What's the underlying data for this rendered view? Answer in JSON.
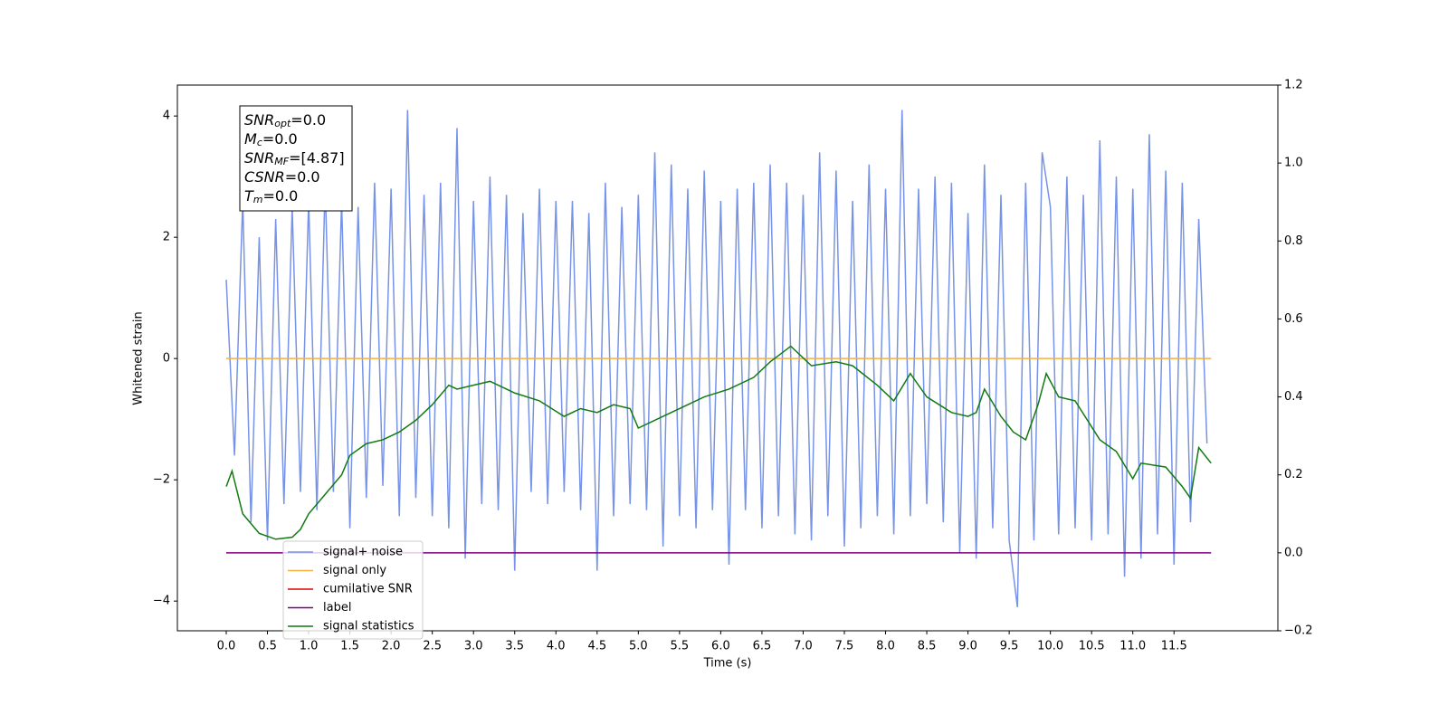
{
  "chart_data": {
    "type": "line",
    "xlabel": "Time (s)",
    "ylabel": "Whitened strain",
    "xlim": [
      -0.593,
      12.76
    ],
    "ylim": [
      -4.49,
      4.51
    ],
    "y2lim": [
      -0.2,
      1.2
    ],
    "xticks": [
      {
        "value": 0,
        "label": "0.0"
      },
      {
        "value": 0.5,
        "label": "0.5"
      },
      {
        "value": 1,
        "label": "1.0"
      },
      {
        "value": 1.5,
        "label": "1.5"
      },
      {
        "value": 2,
        "label": "2.0"
      },
      {
        "value": 2.5,
        "label": "2.5"
      },
      {
        "value": 3,
        "label": "3.0"
      },
      {
        "value": 3.5,
        "label": "3.5"
      },
      {
        "value": 4,
        "label": "4.0"
      },
      {
        "value": 4.5,
        "label": "4.5"
      },
      {
        "value": 5,
        "label": "5.0"
      },
      {
        "value": 5.5,
        "label": "5.5"
      },
      {
        "value": 6,
        "label": "6.0"
      },
      {
        "value": 6.5,
        "label": "6.5"
      },
      {
        "value": 7,
        "label": "7.0"
      },
      {
        "value": 7.5,
        "label": "7.5"
      },
      {
        "value": 8,
        "label": "8.0"
      },
      {
        "value": 8.5,
        "label": "8.5"
      },
      {
        "value": 9,
        "label": "9.0"
      },
      {
        "value": 9.5,
        "label": "9.5"
      },
      {
        "value": 10,
        "label": "10.0"
      },
      {
        "value": 10.5,
        "label": "10.5"
      },
      {
        "value": 11,
        "label": "11.0"
      },
      {
        "value": 11.5,
        "label": "11.5"
      }
    ],
    "yticks": [
      {
        "value": -4,
        "label": "−4"
      },
      {
        "value": -2,
        "label": "−2"
      },
      0,
      2,
      4
    ],
    "y2ticks": [
      {
        "value": -0.2,
        "label": "−0.2"
      },
      {
        "value": 0,
        "label": "0.0"
      },
      0.2,
      0.4,
      0.6,
      0.8,
      {
        "value": 1,
        "label": "1.0"
      },
      1.2
    ],
    "annotations": [
      {
        "text": "SNR",
        "sub": "opt",
        "value": "=0.0"
      },
      {
        "text": "M",
        "sub": "c",
        "value": "=0.0"
      },
      {
        "text": "SNR",
        "sub": "MF",
        "value": "=[4.87]"
      },
      {
        "text": "CSNR",
        "value": "=0.0"
      },
      {
        "text": "T",
        "sub": "m",
        "value": "=0.0"
      }
    ],
    "series": [
      {
        "name": "signal+ noise",
        "color": "#7793e8",
        "x": [
          0,
          0.1,
          0.2,
          0.3,
          0.4,
          0.5,
          0.6,
          0.7,
          0.8,
          0.9,
          1,
          1.1,
          1.2,
          1.3,
          1.4,
          1.5,
          1.6,
          1.7,
          1.8,
          1.9,
          2,
          2.1,
          2.2,
          2.3,
          2.4,
          2.5,
          2.6,
          2.7,
          2.8,
          2.9,
          3,
          3.1,
          3.2,
          3.3,
          3.4,
          3.5,
          3.6,
          3.7,
          3.8,
          3.9,
          4,
          4.1,
          4.2,
          4.3,
          4.4,
          4.5,
          4.6,
          4.7,
          4.8,
          4.9,
          5,
          5.1,
          5.2,
          5.3,
          5.4,
          5.5,
          5.6,
          5.7,
          5.8,
          5.9,
          6,
          6.1,
          6.2,
          6.3,
          6.4,
          6.5,
          6.6,
          6.7,
          6.8,
          6.9,
          7,
          7.1,
          7.2,
          7.3,
          7.4,
          7.5,
          7.6,
          7.7,
          7.8,
          7.9,
          8,
          8.1,
          8.2,
          8.3,
          8.4,
          8.5,
          8.6,
          8.7,
          8.8,
          8.9,
          9,
          9.1,
          9.2,
          9.3,
          9.4,
          9.5,
          9.6,
          9.7,
          9.8,
          9.9,
          10,
          10.1,
          10.2,
          10.3,
          10.4,
          10.5,
          10.6,
          10.7,
          10.8,
          10.9,
          11,
          11.1,
          11.2,
          11.3,
          11.4,
          11.5,
          11.6,
          11.7,
          11.8,
          11.9
        ],
        "values": [
          1.3,
          -1.6,
          2.6,
          -2.7,
          2.0,
          -3.0,
          2.3,
          -2.4,
          2.5,
          -2.2,
          2.6,
          -2.5,
          2.9,
          -2.2,
          2.6,
          -2.8,
          2.5,
          -2.3,
          2.9,
          -2.1,
          2.8,
          -2.6,
          4.1,
          -2.3,
          2.7,
          -2.6,
          2.9,
          -2.8,
          3.8,
          -3.3,
          2.6,
          -2.4,
          3.0,
          -2.5,
          2.7,
          -3.5,
          2.4,
          -2.2,
          2.8,
          -2.4,
          2.6,
          -2.2,
          2.6,
          -2.5,
          2.4,
          -3.5,
          2.9,
          -2.6,
          2.5,
          -2.4,
          2.7,
          -2.5,
          3.4,
          -3.1,
          3.2,
          -2.6,
          2.8,
          -2.8,
          3.1,
          -2.5,
          2.6,
          -3.4,
          2.8,
          -2.5,
          2.9,
          -2.8,
          3.2,
          -2.6,
          2.9,
          -2.9,
          2.7,
          -3.0,
          3.4,
          -2.6,
          3.1,
          -3.1,
          2.6,
          -2.8,
          3.2,
          -2.6,
          2.8,
          -2.9,
          4.1,
          -2.6,
          2.8,
          -2.4,
          3.0,
          -2.7,
          2.9,
          -3.2,
          2.4,
          -3.3,
          3.2,
          -2.8,
          2.7,
          -3.0,
          -4.1,
          2.9,
          -3.0,
          3.4,
          2.5,
          -2.9,
          3.0,
          -2.8,
          2.7,
          -3.0,
          3.6,
          -2.9,
          3.0,
          -3.6,
          2.8,
          -3.3,
          3.7,
          -2.9,
          3.1,
          -3.4,
          2.9,
          -2.7,
          2.3,
          -1.4
        ]
      },
      {
        "name": "signal only",
        "color": "#f5b041",
        "x": [
          0,
          11.95
        ],
        "values": [
          0,
          0
        ]
      },
      {
        "name": "cumilative SNR",
        "color": "#e00000",
        "x": [],
        "values": []
      },
      {
        "name": "label",
        "color": "#800080",
        "axis": "y2",
        "x": [
          0,
          11.95
        ],
        "values": [
          0,
          0
        ]
      },
      {
        "name": "signal statistics",
        "color": "#117a11",
        "axis": "y2",
        "x": [
          0,
          0.07,
          0.2,
          0.4,
          0.6,
          0.8,
          0.9,
          1,
          1.2,
          1.4,
          1.5,
          1.7,
          1.9,
          2.1,
          2.3,
          2.5,
          2.7,
          2.8,
          3,
          3.2,
          3.4,
          3.5,
          3.8,
          4.1,
          4.3,
          4.5,
          4.7,
          4.9,
          5,
          5.3,
          5.6,
          5.8,
          6.1,
          6.4,
          6.6,
          6.85,
          7.1,
          7.4,
          7.6,
          7.9,
          8.1,
          8.3,
          8.5,
          8.8,
          9,
          9.1,
          9.2,
          9.4,
          9.55,
          9.7,
          9.85,
          9.95,
          10.1,
          10.3,
          10.6,
          10.8,
          11,
          11.1,
          11.4,
          11.6,
          11.7,
          11.8,
          11.95
        ],
        "values": [
          0.17,
          0.21,
          0.1,
          0.05,
          0.035,
          0.04,
          0.06,
          0.1,
          0.15,
          0.2,
          0.25,
          0.28,
          0.29,
          0.31,
          0.34,
          0.38,
          0.43,
          0.42,
          0.43,
          0.44,
          0.42,
          0.41,
          0.39,
          0.35,
          0.37,
          0.36,
          0.38,
          0.37,
          0.32,
          0.35,
          0.38,
          0.4,
          0.42,
          0.45,
          0.49,
          0.53,
          0.48,
          0.49,
          0.48,
          0.43,
          0.39,
          0.46,
          0.4,
          0.36,
          0.35,
          0.36,
          0.42,
          0.35,
          0.31,
          0.29,
          0.38,
          0.46,
          0.4,
          0.39,
          0.29,
          0.26,
          0.19,
          0.23,
          0.22,
          0.17,
          0.14,
          0.27,
          0.23
        ]
      }
    ]
  }
}
